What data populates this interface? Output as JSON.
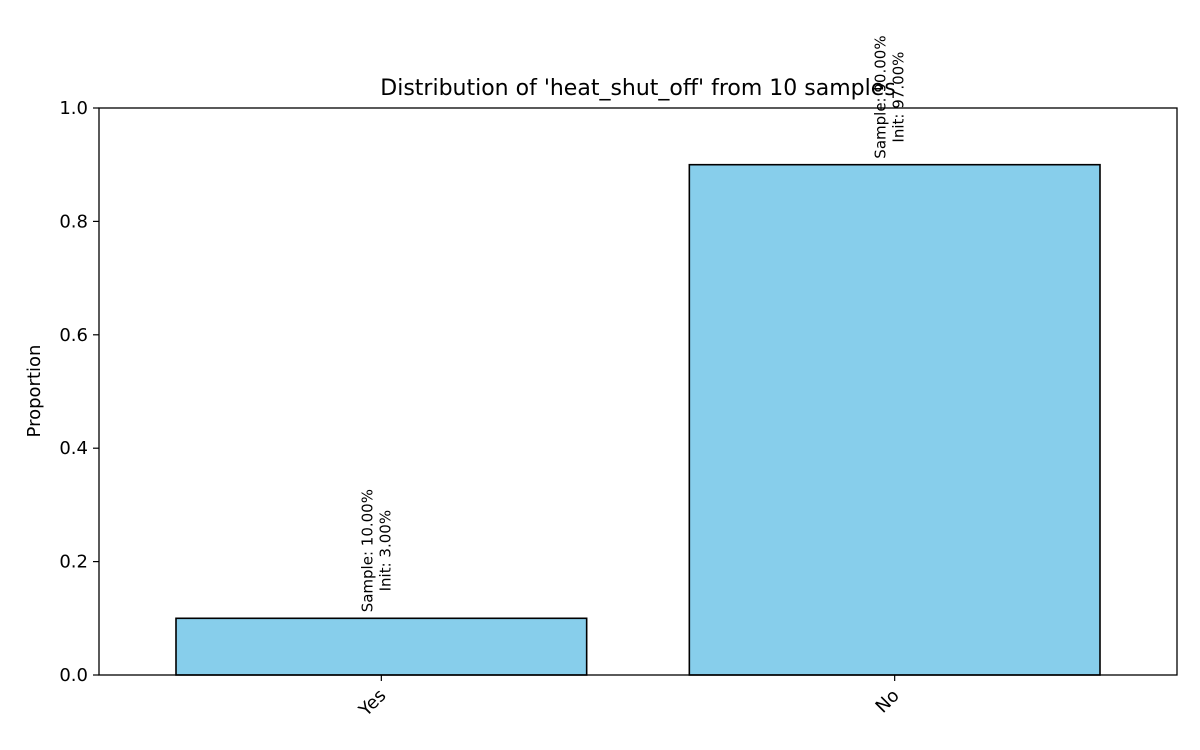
{
  "chart_data": {
    "type": "bar",
    "title": "Distribution of 'heat_shut_off' from 10 samples",
    "xlabel": "",
    "ylabel": "Proportion",
    "ylim": [
      0,
      1.0
    ],
    "yticks": [
      "0.0",
      "0.2",
      "0.4",
      "0.6",
      "0.8",
      "1.0"
    ],
    "categories": [
      "Yes",
      "No"
    ],
    "values": [
      0.1,
      0.9
    ],
    "labels": [
      [
        "Sample: 10.00%",
        "Init: 3.00%"
      ],
      [
        "Sample: 90.00%",
        "Init: 97.00%"
      ]
    ],
    "bar_color": "#87CEEB",
    "edge_color": "#000000",
    "grid": false
  }
}
